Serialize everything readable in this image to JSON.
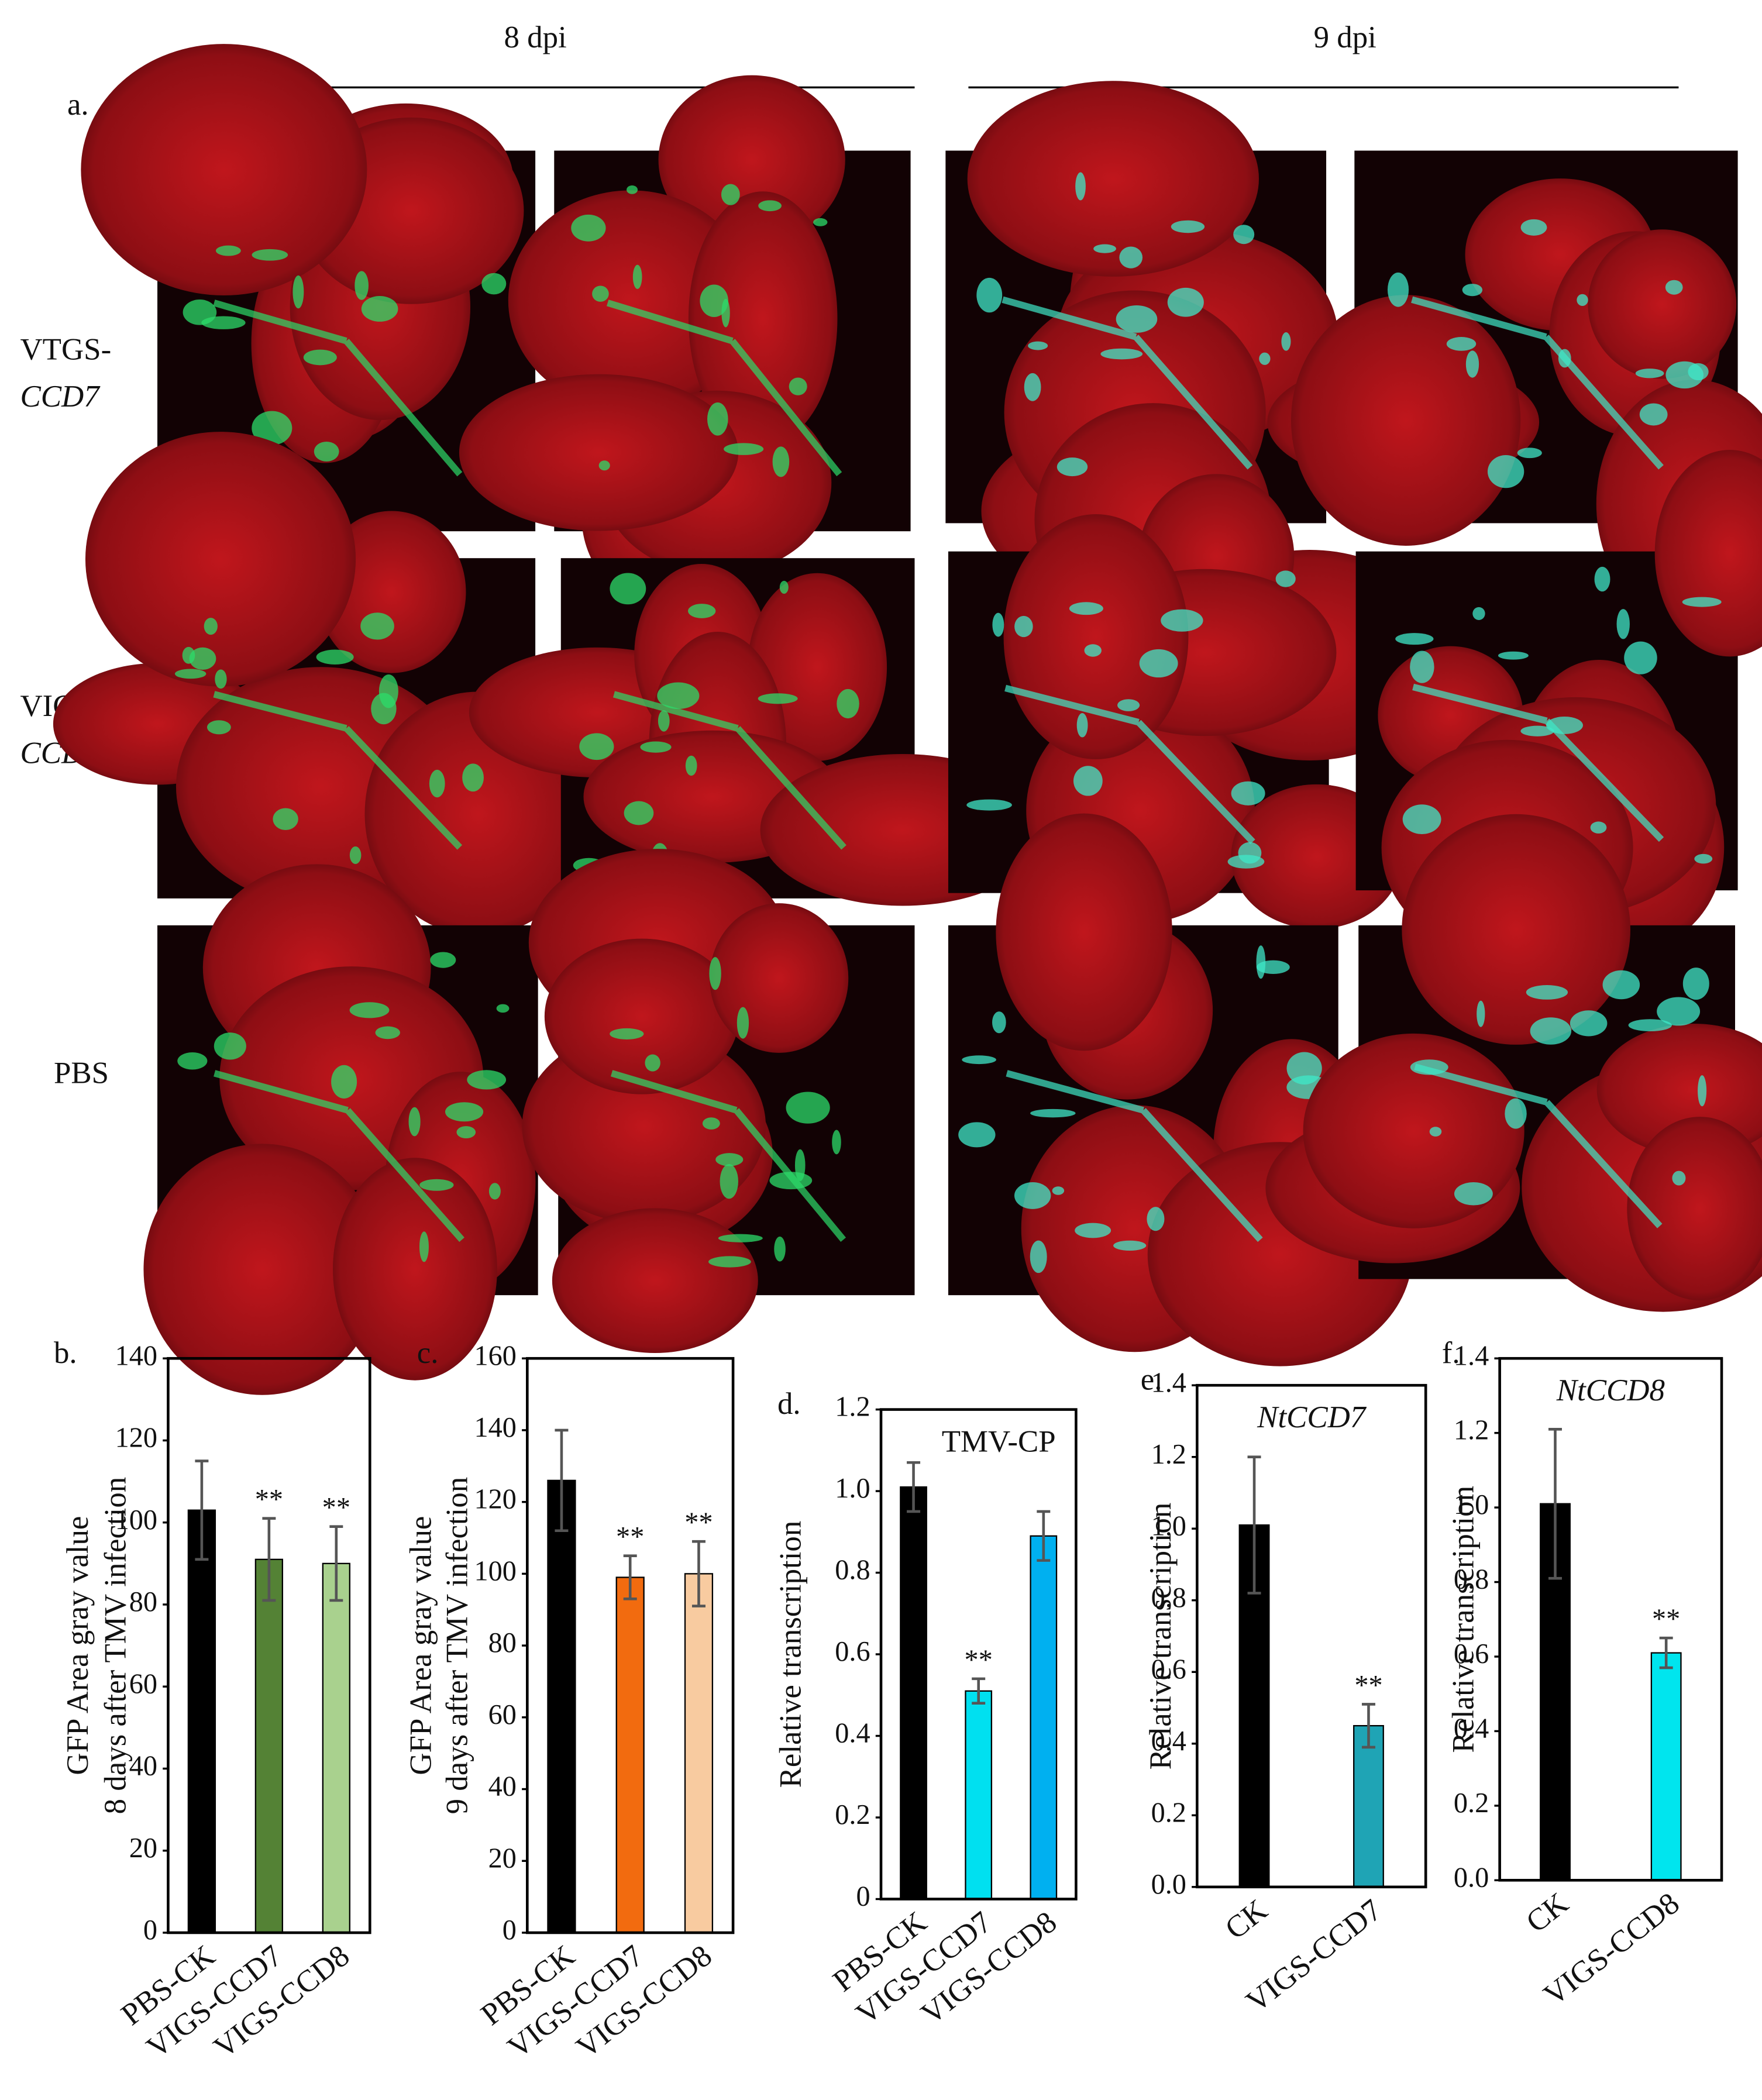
{
  "figure": {
    "columns": [
      "8 dpi",
      "9 dpi"
    ],
    "panel_label": "a.",
    "rows": [
      {
        "line1": "VTGS-",
        "line2": "CCD7"
      },
      {
        "line1": "VIGS-",
        "line2": "CCD8"
      },
      {
        "line1": "PBS"
      }
    ]
  },
  "chart_data": [
    {
      "type": "bar",
      "label": "b.",
      "ylabel": [
        "GFP Area gray  value",
        "8 days after TMV infection"
      ],
      "categories": [
        "PBS-CK",
        "VIGS-CCD7",
        "VIGS-CCD8"
      ],
      "values": [
        103,
        91,
        90
      ],
      "errors": [
        12,
        10,
        9
      ],
      "sig_labels": [
        null,
        "**",
        "**"
      ],
      "colors": [
        "#000000",
        "#548235",
        "#a9d18e"
      ],
      "ylim": [
        0,
        140
      ],
      "yticks": [
        0,
        20,
        40,
        60,
        80,
        100,
        120,
        140
      ]
    },
    {
      "type": "bar",
      "label": "c.",
      "ylabel": [
        "GFP Area gray  value",
        "9 days after TMV infection"
      ],
      "categories": [
        "PBS-CK",
        "VIGS-CCD7",
        "VIGS-CCD8"
      ],
      "values": [
        126,
        99,
        100
      ],
      "errors": [
        14,
        6,
        9
      ],
      "sig_labels": [
        null,
        "**",
        "**"
      ],
      "colors": [
        "#000000",
        "#f26b0f",
        "#f8cba0"
      ],
      "ylim": [
        0,
        160
      ],
      "yticks": [
        0,
        20,
        40,
        60,
        80,
        100,
        120,
        140,
        160
      ]
    },
    {
      "type": "bar",
      "label": "d.",
      "ylabel": [
        "Relative transcription"
      ],
      "note": "TMV-CP",
      "note_style": "normal",
      "categories": [
        "PBS-CK",
        "VIGS-CCD7",
        "VIGS-CCD8"
      ],
      "values": [
        1.01,
        0.51,
        0.89
      ],
      "errors": [
        0.06,
        0.03,
        0.06
      ],
      "sig_labels": [
        null,
        "**",
        null
      ],
      "colors": [
        "#000000",
        "#00e0f0",
        "#00b0f0"
      ],
      "ylim": [
        0,
        1.2
      ],
      "yticks": [
        0,
        0.2,
        0.4,
        0.6,
        0.8,
        {
          "value": 1,
          "label": "1.0"
        },
        1.2
      ]
    },
    {
      "type": "bar",
      "label": "e.",
      "ylabel": [
        "Relative transcription"
      ],
      "note": "NtCCD7",
      "note_style": "italic",
      "categories": [
        "CK",
        "VIGS-CCD7"
      ],
      "values": [
        1.01,
        0.45
      ],
      "errors": [
        0.19,
        0.06
      ],
      "sig_labels": [
        null,
        "**"
      ],
      "colors": [
        "#000000",
        "#1fa4b5"
      ],
      "ylim": [
        0,
        1.4
      ],
      "yticks": [
        {
          "value": 0,
          "label": "0.0"
        },
        0.2,
        0.4,
        0.6,
        0.8,
        {
          "value": 1,
          "label": "1.0"
        },
        1.2,
        1.4
      ]
    },
    {
      "type": "bar",
      "label": "f.",
      "ylabel": [
        "Relative transcription"
      ],
      "note": "NtCCD8",
      "note_style": "italic",
      "categories": [
        "CK",
        "VIGS-CCD8"
      ],
      "values": [
        1.01,
        0.61
      ],
      "errors": [
        0.2,
        0.04
      ],
      "sig_labels": [
        null,
        "**"
      ],
      "colors": [
        "#000000",
        "#00e5ee"
      ],
      "ylim": [
        0,
        1.4
      ],
      "yticks": [
        {
          "value": 0,
          "label": "0.0"
        },
        0.2,
        0.4,
        0.6,
        0.8,
        {
          "value": 1,
          "label": "1.0"
        },
        1.2,
        1.4
      ]
    }
  ]
}
